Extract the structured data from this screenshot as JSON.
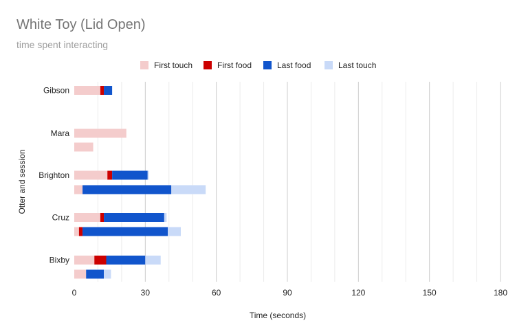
{
  "chart_data": {
    "type": "bar",
    "orientation": "horizontal",
    "stacked": true,
    "title": "White Toy (Lid Open)",
    "subtitle": "time spent interacting",
    "xlabel": "Time (seconds)",
    "ylabel": "Otter and session",
    "xlim": [
      0,
      180
    ],
    "xticks": [
      0,
      30,
      60,
      90,
      120,
      150,
      180
    ],
    "grid": true,
    "legend_position": "top",
    "groups": [
      "Gibson",
      "Mara",
      "Brighton",
      "Cruz",
      "Bixby"
    ],
    "series": [
      {
        "name": "First touch",
        "color": "#f4cccc"
      },
      {
        "name": "First food",
        "color": "#cc0000"
      },
      {
        "name": "Last food",
        "color": "#1155cc"
      },
      {
        "name": "Last touch",
        "color": "#c9daf8"
      }
    ],
    "rows": [
      {
        "group": "Gibson",
        "values": [
          11,
          1.5,
          3.5,
          0
        ]
      },
      {
        "group": "Mara",
        "values": [
          22,
          0,
          0,
          0
        ]
      },
      {
        "group": "Mara",
        "values": [
          8,
          0,
          0,
          0
        ]
      },
      {
        "group": "Brighton",
        "values": [
          14,
          2,
          15,
          0.5
        ]
      },
      {
        "group": "Brighton",
        "values": [
          3.5,
          0,
          37.5,
          14.5
        ]
      },
      {
        "group": "Cruz",
        "values": [
          11,
          1.5,
          25.5,
          1
        ]
      },
      {
        "group": "Cruz",
        "values": [
          2,
          1.5,
          36,
          5.5
        ]
      },
      {
        "group": "Bixby",
        "values": [
          8.5,
          5,
          16.5,
          6.5
        ]
      },
      {
        "group": "Bixby",
        "values": [
          5,
          0,
          7.5,
          3
        ]
      }
    ]
  }
}
